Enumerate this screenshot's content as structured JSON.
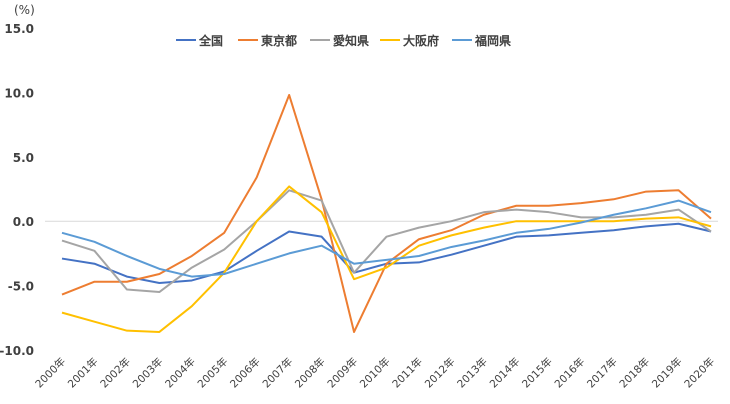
{
  "chart_data": {
    "type": "line",
    "title": "",
    "ylabel": "(%)",
    "xlabel": "",
    "ylim": [
      -10,
      15
    ],
    "yticks": [
      -10,
      -5,
      0,
      5,
      10,
      15
    ],
    "ytick_labels": [
      "-10.0",
      "-5.0",
      "0.0",
      "5.0",
      "10.0",
      "15.0"
    ],
    "grid": "zero-line only",
    "legend_position": "top",
    "categories": [
      "2000年",
      "2001年",
      "2002年",
      "2003年",
      "2004年",
      "2005年",
      "2006年",
      "2007年",
      "2008年",
      "2009年",
      "2010年",
      "2011年",
      "2012年",
      "2013年",
      "2014年",
      "2015年",
      "2016年",
      "2017年",
      "2018年",
      "2019年",
      "2020年"
    ],
    "series": [
      {
        "name": "全国",
        "color": "#4472C4",
        "values": [
          -2.9,
          -3.3,
          -4.3,
          -4.8,
          -4.6,
          -3.9,
          -2.3,
          -0.8,
          -1.2,
          -4.0,
          -3.3,
          -3.2,
          -2.6,
          -1.9,
          -1.2,
          -1.1,
          -0.9,
          -0.7,
          -0.4,
          -0.2,
          -0.8
        ]
      },
      {
        "name": "東京都",
        "color": "#ED7D31",
        "values": [
          -5.7,
          -4.7,
          -4.7,
          -4.1,
          -2.7,
          -0.9,
          3.4,
          9.8,
          1.7,
          -8.6,
          -3.3,
          -1.4,
          -0.7,
          0.5,
          1.2,
          1.2,
          1.4,
          1.7,
          2.3,
          2.4,
          0.2
        ]
      },
      {
        "name": "愛知県",
        "color": "#A5A5A5",
        "values": [
          -1.5,
          -2.3,
          -5.3,
          -5.5,
          -3.6,
          -2.2,
          0.0,
          2.4,
          1.6,
          -4.0,
          -1.2,
          -0.5,
          0.0,
          0.7,
          0.9,
          0.7,
          0.3,
          0.3,
          0.5,
          0.9,
          -0.8
        ]
      },
      {
        "name": "大阪府",
        "color": "#FFC000",
        "values": [
          -7.1,
          -7.8,
          -8.5,
          -8.6,
          -6.6,
          -4.0,
          0.0,
          2.7,
          0.7,
          -4.5,
          -3.6,
          -1.9,
          -1.1,
          -0.5,
          0.0,
          0.0,
          0.0,
          0.0,
          0.2,
          0.3,
          -0.4
        ]
      },
      {
        "name": "福岡県",
        "color": "#5B9BD5",
        "values": [
          -0.9,
          -1.6,
          -2.7,
          -3.7,
          -4.3,
          -4.1,
          -3.3,
          -2.5,
          -1.9,
          -3.3,
          -3.0,
          -2.7,
          -2.0,
          -1.5,
          -0.9,
          -0.6,
          -0.1,
          0.5,
          1.0,
          1.6,
          0.7
        ]
      }
    ]
  }
}
